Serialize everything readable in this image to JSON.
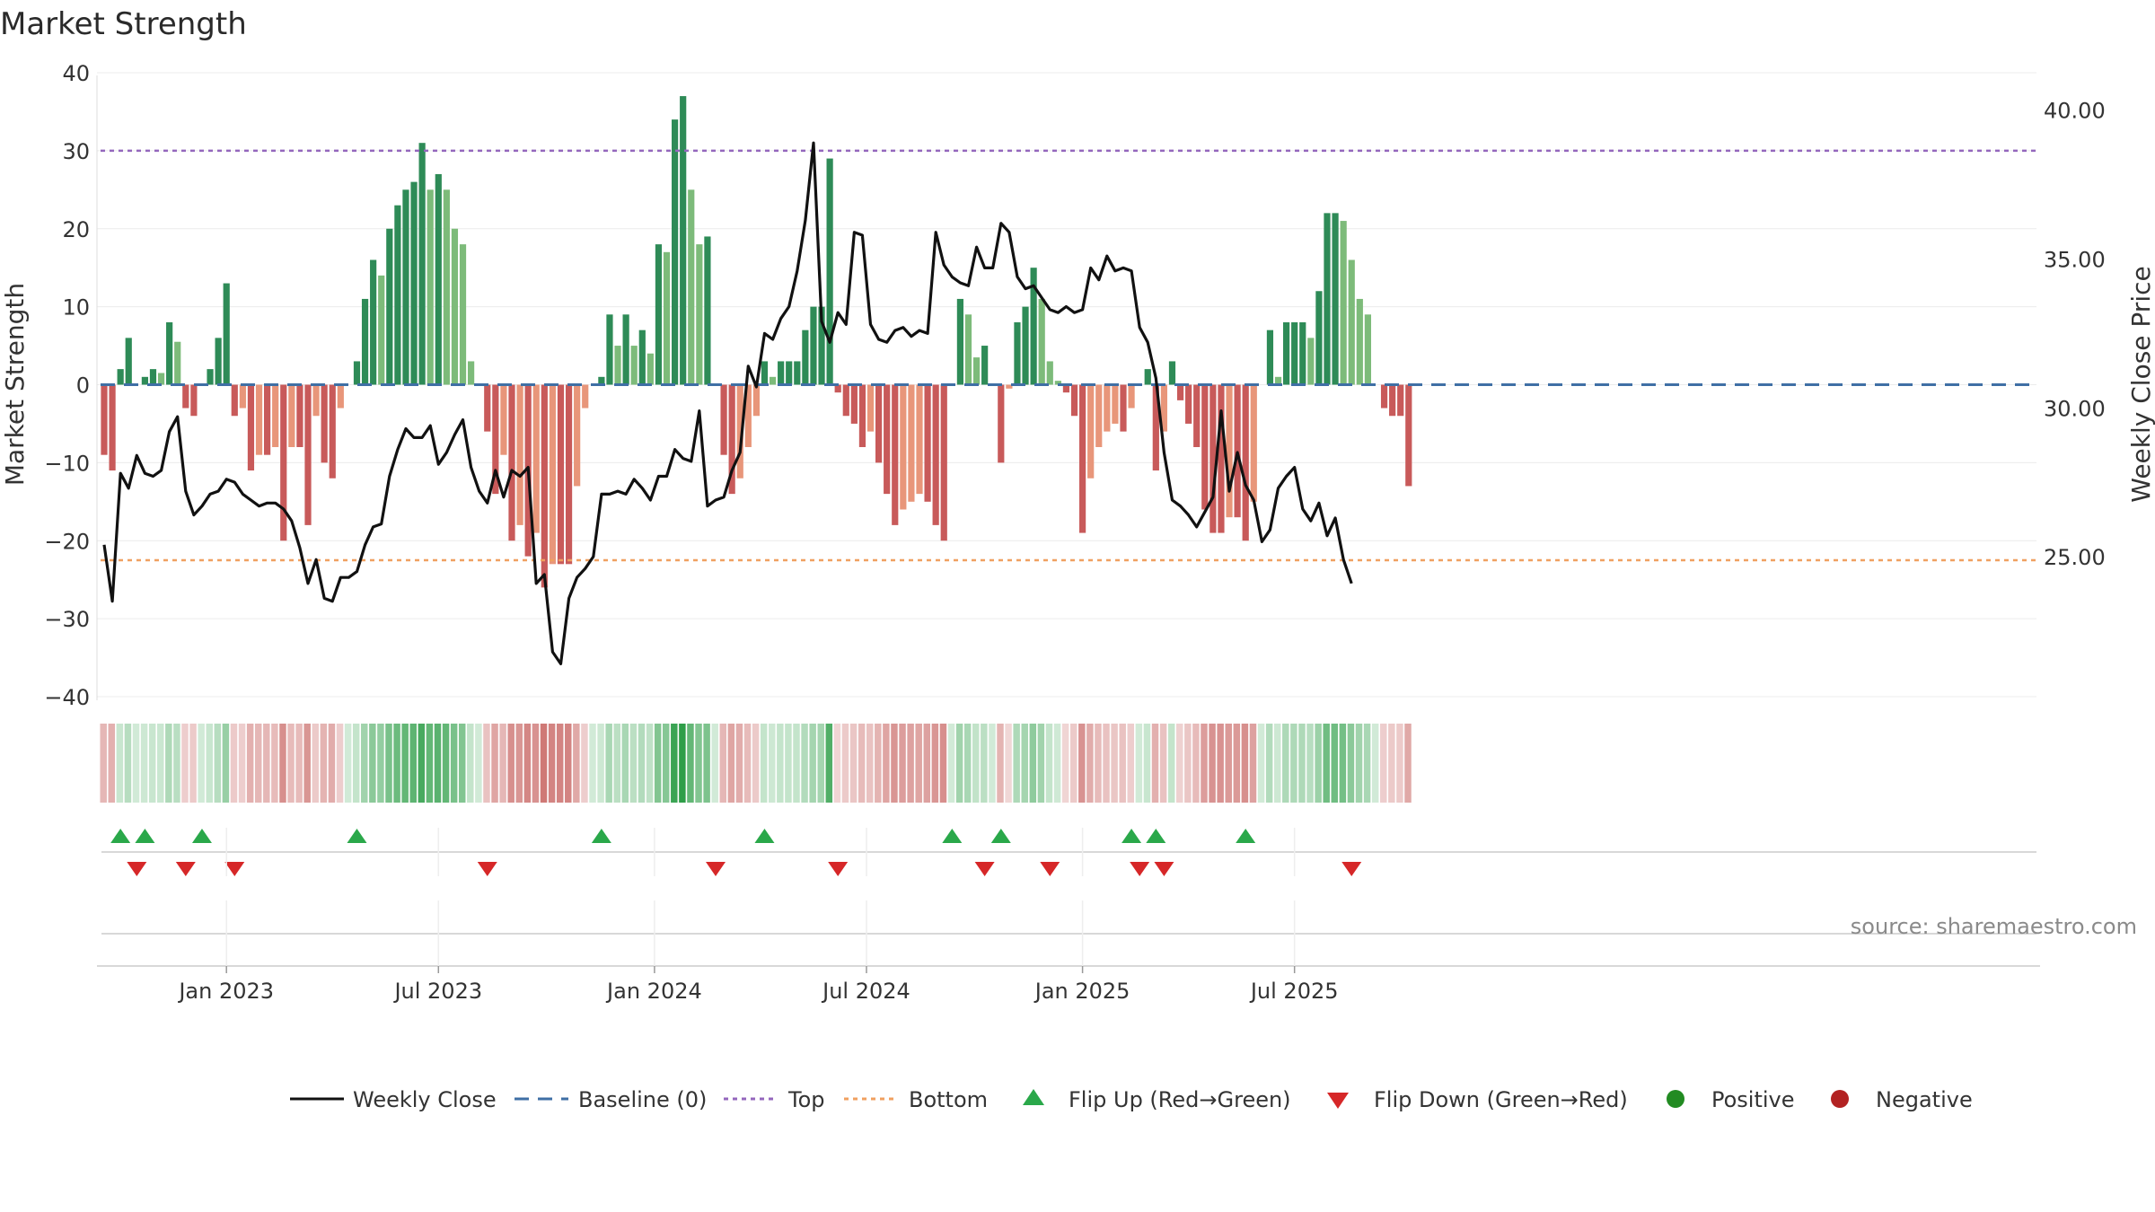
{
  "colors": {
    "strong_green": "#2e8b57",
    "light_green": "#7dbb7a",
    "strong_red": "#c85a5a",
    "light_red": "#e8967a",
    "line": "#111111",
    "baseline": "#3f6fa5",
    "top": "#9467bd",
    "bottom": "#f0a060",
    "flip_up": "#2aa84a",
    "flip_down": "#d62728",
    "positive": "#228b22",
    "negative": "#b22222"
  },
  "chart_data": {
    "type": "bar",
    "title": "Market Strength",
    "ylabel_left": "Market Strength",
    "ylabel_right": "Weekly Close Price",
    "ylim_left": [
      -40,
      40
    ],
    "ylim_right": [
      21.2,
      41.5
    ],
    "yticks_left": [
      "40",
      "30",
      "20",
      "10",
      "0",
      "−10",
      "−20",
      "−30",
      "−40"
    ],
    "yticks_left_values": [
      40,
      30,
      20,
      10,
      0,
      -10,
      -20,
      -30,
      -40
    ],
    "yticks_right": [
      "40.00",
      "35.00",
      "30.00",
      "25.00"
    ],
    "yticks_right_values": [
      40,
      35,
      30,
      25
    ],
    "xticks": [
      "Jan 2023",
      "Jul 2023",
      "Jan 2024",
      "Jul 2024",
      "Jan 2025",
      "Jul 2025"
    ],
    "xticks_week_index": [
      15,
      41,
      67.5,
      93.5,
      120,
      146
    ],
    "top_level": 30,
    "bottom_level": -22.5,
    "strength_weekly": [
      -9,
      -11,
      2,
      6,
      0,
      1,
      2,
      1.5,
      8,
      5.5,
      -3,
      -4,
      0,
      2,
      6,
      13,
      -4,
      -3,
      -11,
      -9,
      -9,
      -8,
      -20,
      -8,
      -8,
      -18,
      -4,
      -10,
      -12,
      -3,
      0,
      3,
      11,
      16,
      14,
      20,
      23,
      25,
      26,
      31,
      25,
      27,
      25,
      20,
      18,
      3,
      0,
      -6,
      -14,
      -9,
      -20,
      -18,
      -22,
      -19,
      -26,
      -23,
      -23,
      -23,
      -13,
      -3,
      0,
      1,
      9,
      5,
      9,
      5,
      7,
      4,
      18,
      17,
      34,
      37,
      25,
      18,
      19,
      0,
      -9,
      -14,
      -12,
      -8,
      -4,
      3,
      1,
      3,
      3,
      3,
      7,
      10,
      10,
      29,
      -1,
      -4,
      -5,
      -8,
      -6,
      -10,
      -14,
      -18,
      -16,
      -15,
      -14,
      -15,
      -18,
      -20,
      0,
      11,
      9,
      3.5,
      5,
      0,
      -10,
      -0.5,
      8,
      10,
      15,
      11,
      3,
      0.5,
      -1,
      -4,
      -19,
      -12,
      -8,
      -6,
      -5,
      -6,
      -3,
      0,
      2,
      -11,
      -6,
      3,
      -2,
      -5,
      -8,
      -16,
      -19,
      -19,
      -17,
      -17,
      -20,
      -15,
      0,
      7,
      1,
      8,
      8,
      8,
      6,
      12,
      22,
      22,
      21,
      16,
      11,
      9,
      0,
      -3,
      -4,
      -4,
      -13
    ],
    "weekly_close": [
      25.4,
      23.5,
      27.8,
      27.3,
      28.4,
      27.8,
      27.7,
      27.9,
      29.2,
      29.7,
      27.2,
      26.4,
      26.7,
      27.1,
      27.2,
      27.6,
      27.5,
      27.1,
      26.9,
      26.7,
      26.8,
      26.8,
      26.6,
      26.2,
      25.3,
      24.1,
      24.9,
      23.6,
      23.5,
      24.3,
      24.3,
      24.5,
      25.4,
      26.0,
      26.1,
      27.7,
      28.6,
      29.3,
      29.0,
      29.0,
      29.4,
      28.1,
      28.5,
      29.1,
      29.6,
      28.0,
      27.2,
      26.8,
      27.9,
      27.0,
      27.9,
      27.7,
      28.0,
      24.1,
      24.4,
      21.8,
      21.4,
      23.6,
      24.3,
      24.6,
      25.0,
      27.1,
      27.1,
      27.2,
      27.1,
      27.6,
      27.3,
      26.9,
      27.7,
      27.7,
      28.6,
      28.3,
      28.2,
      29.9,
      26.7,
      26.9,
      27.0,
      27.9,
      28.5,
      31.4,
      30.7,
      32.5,
      32.3,
      33.0,
      33.4,
      34.6,
      36.3,
      38.9,
      32.9,
      32.2,
      33.2,
      32.8,
      35.9,
      35.8,
      32.8,
      32.3,
      32.2,
      32.6,
      32.7,
      32.4,
      32.6,
      32.5,
      35.9,
      34.8,
      34.4,
      34.2,
      34.1,
      35.4,
      34.7,
      34.7,
      36.2,
      35.9,
      34.4,
      34.0,
      34.1,
      33.7,
      33.3,
      33.2,
      33.4,
      33.2,
      33.3,
      34.7,
      34.3,
      35.1,
      34.6,
      34.7,
      34.6,
      32.7,
      32.2,
      31.0,
      28.5,
      26.9,
      26.7,
      26.4,
      26.0,
      26.5,
      27.0,
      29.9,
      27.2,
      28.5,
      27.4,
      26.9,
      25.5,
      25.9,
      27.3,
      27.7,
      28.0,
      26.6,
      26.2,
      26.8,
      25.7,
      26.3,
      24.9,
      24.1
    ]
  },
  "flips": {
    "up_weeks": [
      2,
      5,
      12,
      31,
      61,
      81,
      104,
      110,
      126,
      129,
      140
    ],
    "down_weeks": [
      4,
      10,
      16,
      47,
      75,
      90,
      108,
      116,
      127,
      130,
      153
    ]
  },
  "source_text": "source: sharemaestro.com",
  "legend": {
    "weekly_close": "Weekly Close",
    "baseline": "Baseline (0)",
    "top": "Top",
    "bottom": "Bottom",
    "flip_up": "Flip Up (Red→Green)",
    "flip_down": "Flip Down (Green→Red)",
    "positive": "Positive",
    "negative": "Negative"
  }
}
